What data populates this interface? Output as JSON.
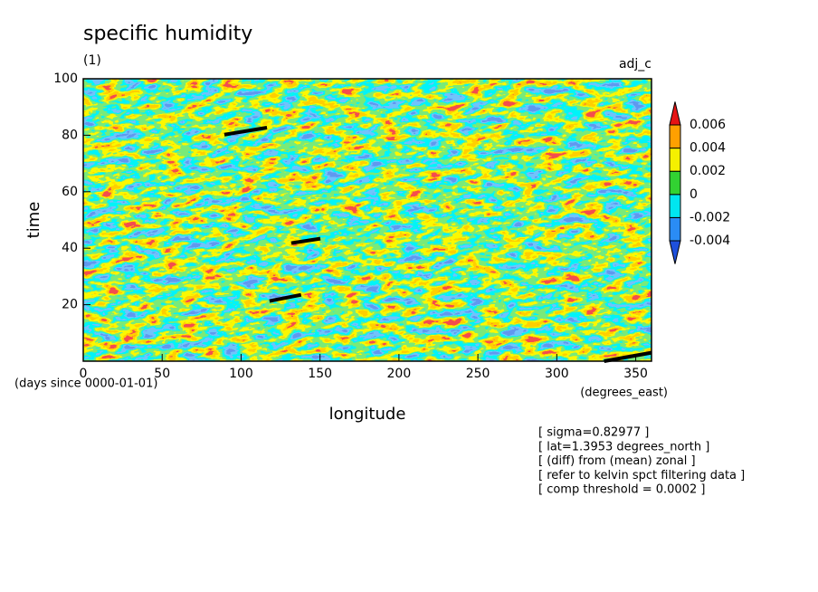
{
  "chart_data": {
    "type": "contour",
    "title": "specific humidity",
    "subtitle": "(1)",
    "label_right": "adj_c",
    "x_label": "longitude",
    "y_label": "time",
    "x_units": "(degrees_east)",
    "y_units": "(days since 0000-01-01)",
    "xlim": [
      0,
      360
    ],
    "xticks": [
      0,
      50,
      100,
      150,
      200,
      250,
      300,
      350
    ],
    "ylim": [
      0,
      100
    ],
    "yticks": [
      20,
      40,
      60,
      80,
      100
    ],
    "colorbar": {
      "levels": [
        -0.004,
        -0.002,
        0,
        0.002,
        0.004,
        0.006
      ],
      "colors": [
        "#1e50dc",
        "#2a8cf5",
        "#00e6f0",
        "#32d232",
        "#f5f000",
        "#ffa000",
        "#e61414"
      ]
    },
    "segments": [
      [
        [
          89.4,
          80.2
        ],
        [
          116.4,
          82.7
        ]
      ],
      [
        [
          131.8,
          41.8
        ],
        [
          150.2,
          43.4
        ]
      ],
      [
        [
          118,
          21.3
        ],
        [
          138,
          23.5
        ]
      ],
      [
        [
          330,
          0
        ],
        [
          360,
          3
        ]
      ]
    ],
    "notes": [
      "[ sigma=0.82977 ]",
      "[ lat=1.3953 degrees_north ]",
      "[ (diff) from (mean) zonal ]",
      "[ refer to kelvin spct filtering data ]",
      "[ comp threshold = 0.0002 ]"
    ]
  }
}
